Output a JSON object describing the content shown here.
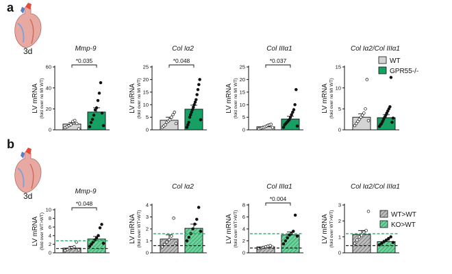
{
  "figure": {
    "panels": [
      {
        "letter": "a",
        "time_label": "3d",
        "legend": [
          {
            "label": "WT",
            "color": "#d4d4d4",
            "hatched": false
          },
          {
            "label": "GPR55-/-",
            "color": "#16a064",
            "hatched": false
          }
        ]
      },
      {
        "letter": "b",
        "time_label": "3d",
        "legend": [
          {
            "label": "WT>WT",
            "color": "#bdbdbd",
            "hatched": true
          },
          {
            "label": "KO>WT",
            "color": "#6fd19b",
            "hatched": true
          }
        ]
      }
    ]
  },
  "colors": {
    "a_group1": "#d4d4d4",
    "a_group2": "#16a064",
    "b_group1": "#bdbdbd",
    "b_group2": "#6fd19b",
    "ref_line_black": "#111111",
    "ref_line_green": "#1a9e5c"
  },
  "chart_data": [
    {
      "type": "bar",
      "panel": "a",
      "title": "Mmp-9",
      "ylabel": "LV mRNA",
      "ylabel_sub": "(fold over no MI WT)",
      "ylim": [
        0,
        60
      ],
      "yticks": [
        "0",
        "20",
        "40",
        "60"
      ],
      "significance": "*0.035",
      "series": [
        {
          "name": "WT",
          "mean": 5.5,
          "sem": 1.5,
          "points": [
            2,
            3,
            4,
            5,
            8,
            9,
            6,
            1
          ]
        },
        {
          "name": "GPR55-/-",
          "mean": 17,
          "sem": 4,
          "points": [
            3,
            7,
            10,
            14,
            19,
            21,
            28,
            35,
            45,
            16,
            4
          ]
        }
      ]
    },
    {
      "type": "bar",
      "panel": "a",
      "title": "Col Iα2",
      "ylabel": "LV mRNA",
      "ylabel_sub": "(fold over no MI WT)",
      "ylim": [
        0,
        25
      ],
      "yticks": [
        "0",
        "5",
        "10",
        "15",
        "20",
        "25"
      ],
      "significance": "*0.048",
      "series": [
        {
          "name": "WT",
          "mean": 3.8,
          "sem": 1.2,
          "points": [
            1,
            1.5,
            2,
            3,
            3.5,
            4,
            5,
            6,
            7,
            2.5
          ]
        },
        {
          "name": "GPR55-/-",
          "mean": 8.2,
          "sem": 1.6,
          "points": [
            1,
            2,
            3,
            5,
            6,
            7,
            8,
            9,
            10,
            11,
            12,
            14,
            16,
            18,
            20,
            4
          ]
        }
      ]
    },
    {
      "type": "bar",
      "panel": "a",
      "title": "Col IIIα1",
      "ylabel": "LV mRNA",
      "ylabel_sub": "(fold over no MI WT)",
      "ylim": [
        0,
        25
      ],
      "yticks": [
        "0",
        "5",
        "10",
        "15",
        "20",
        "25"
      ],
      "significance": "*0.037",
      "series": [
        {
          "name": "WT",
          "mean": 1.2,
          "sem": 0.3,
          "points": [
            0.4,
            0.6,
            0.8,
            1,
            1.2,
            1.5,
            1.8,
            2,
            2.2,
            0.9
          ]
        },
        {
          "name": "GPR55-/-",
          "mean": 4.3,
          "sem": 1.1,
          "points": [
            1,
            2,
            2.5,
            3,
            3.5,
            4,
            5,
            6,
            7,
            8,
            10,
            16,
            1.5
          ]
        }
      ]
    },
    {
      "type": "bar",
      "panel": "a",
      "title": "Col Iα2/Col IIIα1",
      "ylabel": "LV mRNA",
      "ylabel_sub": "(fold over no MI WT)",
      "ylim": [
        0,
        15
      ],
      "yticks": [
        "0",
        "5",
        "10",
        "15"
      ],
      "significance": "",
      "series": [
        {
          "name": "WT",
          "mean": 3.0,
          "sem": 0.8,
          "points": [
            1,
            1.5,
            2,
            2.5,
            3,
            3.5,
            4,
            5,
            12,
            2.2
          ]
        },
        {
          "name": "GPR55-/-",
          "mean": 2.9,
          "sem": 0.7,
          "points": [
            0.8,
            1.2,
            1.5,
            2,
            2.5,
            3,
            3.5,
            4,
            4.5,
            5,
            5.5,
            12.5,
            1.8,
            2.8
          ]
        }
      ]
    },
    {
      "type": "bar",
      "panel": "b",
      "title": "Mmp-9",
      "ylabel": "LV mRNA",
      "ylabel_sub": "(fold over WT>WT)",
      "ylim": [
        0,
        10
      ],
      "yticks": [
        "0",
        "2",
        "4",
        "6",
        "8",
        "10"
      ],
      "significance": "*0.048",
      "ref_lines": [
        {
          "color": "black",
          "value": 1.0
        },
        {
          "color": "green",
          "value": 2.8
        }
      ],
      "series": [
        {
          "name": "WT>WT",
          "mean": 1.1,
          "sem": 0.4,
          "points": [
            0.5,
            0.8,
            1,
            1.2,
            1.4,
            2.5,
            0.7
          ]
        },
        {
          "name": "KO>WT",
          "mean": 3.2,
          "sem": 0.6,
          "points": [
            1.5,
            2,
            2.5,
            3,
            3.5,
            4,
            5.8,
            6.6,
            2.2
          ]
        }
      ]
    },
    {
      "type": "bar",
      "panel": "b",
      "title": "Col Iα2",
      "ylabel": "LV mRNA",
      "ylabel_sub": "(fold over WT>WT)",
      "ylim": [
        0,
        4
      ],
      "yticks": [
        "0",
        "1",
        "2",
        "3",
        "4"
      ],
      "significance": "",
      "ref_lines": [
        {
          "color": "black",
          "value": 0.6
        },
        {
          "color": "green",
          "value": 1.6
        }
      ],
      "series": [
        {
          "name": "WT>WT",
          "mean": 1.15,
          "sem": 0.35,
          "points": [
            0.5,
            0.7,
            0.9,
            1.1,
            1.4,
            2.9,
            0.8
          ]
        },
        {
          "name": "KO>WT",
          "mean": 2.05,
          "sem": 0.35,
          "points": [
            1,
            1.3,
            1.6,
            2,
            2.4,
            2.8,
            3.8,
            1.8
          ]
        }
      ]
    },
    {
      "type": "bar",
      "panel": "b",
      "title": "Col IIIα1",
      "ylabel": "LV mRNA",
      "ylabel_sub": "(fold over WT>WT)",
      "ylim": [
        0,
        8
      ],
      "yticks": [
        "0",
        "2",
        "4",
        "6",
        "8"
      ],
      "significance": "*0.004",
      "ref_lines": [
        {
          "color": "black",
          "value": 0.8
        },
        {
          "color": "green",
          "value": 3.2
        }
      ],
      "series": [
        {
          "name": "WT>WT",
          "mean": 1.0,
          "sem": 0.1,
          "points": [
            0.7,
            0.8,
            0.9,
            1,
            1.1,
            1.2,
            0.95
          ]
        },
        {
          "name": "KO>WT",
          "mean": 3.0,
          "sem": 0.5,
          "points": [
            1.5,
            2,
            2.5,
            3,
            3.2,
            3.6,
            6.3,
            2.8
          ]
        }
      ]
    },
    {
      "type": "bar",
      "panel": "b",
      "title": "Col Iα2/Col IIIα1",
      "ylabel": "LV mRNA",
      "ylabel_sub": "(fold over WT>WT)",
      "ylim": [
        0,
        3
      ],
      "yticks": [
        "0",
        "1",
        "2",
        "3"
      ],
      "significance": "",
      "ref_lines": [
        {
          "color": "black",
          "value": 0.45
        },
        {
          "color": "green",
          "value": 1.2
        }
      ],
      "series": [
        {
          "name": "WT>WT",
          "mean": 1.15,
          "sem": 0.25,
          "points": [
            0.6,
            0.8,
            1,
            1.1,
            1.3,
            1.4,
            2.6
          ]
        },
        {
          "name": "KO>WT",
          "mean": 0.7,
          "sem": 0.08,
          "points": [
            0.5,
            0.6,
            0.7,
            0.8,
            0.9,
            1.0,
            0.65
          ]
        }
      ]
    }
  ]
}
